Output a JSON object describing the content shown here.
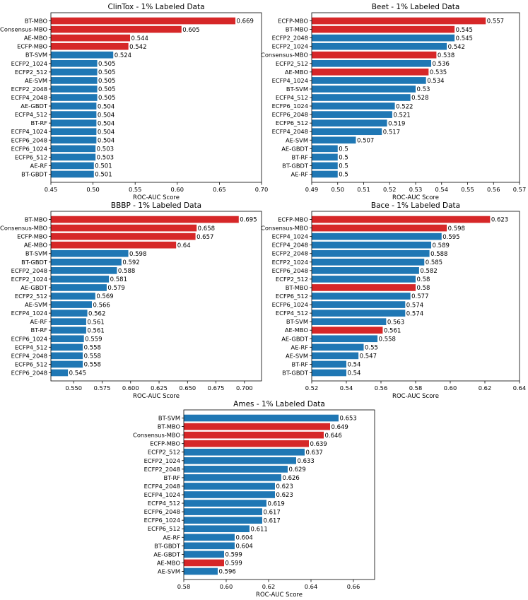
{
  "colors": {
    "highlight": "#d62728",
    "default": "#1f77b4",
    "axis": "#000000"
  },
  "chart_data": [
    {
      "type": "bar",
      "orientation": "horizontal",
      "title": "ClinTox - 1% Labeled Data",
      "xlabel": "ROC-AUC Score",
      "xlim": [
        0.45,
        0.7
      ],
      "xticks": [
        "0.45",
        "0.50",
        "0.55",
        "0.60",
        "0.65",
        "0.70"
      ],
      "categories": [
        "BT-MBO",
        "Consensus-MBO",
        "AE-MBO",
        "ECFP-MBO",
        "BT-SVM",
        "ECFP2_1024",
        "ECFP2_512",
        "AE-SVM",
        "ECFP2_2048",
        "ECFP4_2048",
        "AE-GBDT",
        "ECFP4_512",
        "BT-RF",
        "ECFP4_1024",
        "ECFP6_2048",
        "ECFP6_1024",
        "ECFP6_512",
        "AE-RF",
        "BT-GBDT"
      ],
      "values": [
        0.669,
        0.605,
        0.544,
        0.542,
        0.524,
        0.505,
        0.505,
        0.505,
        0.505,
        0.505,
        0.504,
        0.504,
        0.504,
        0.504,
        0.504,
        0.503,
        0.503,
        0.501,
        0.501
      ],
      "labels": [
        "0.669",
        "0.605",
        "0.544",
        "0.542",
        "0.524",
        "0.505",
        "0.505",
        "0.505",
        "0.505",
        "0.505",
        "0.504",
        "0.504",
        "0.504",
        "0.504",
        "0.504",
        "0.503",
        "0.503",
        "0.501",
        "0.501"
      ],
      "highlight": [
        true,
        true,
        true,
        true,
        false,
        false,
        false,
        false,
        false,
        false,
        false,
        false,
        false,
        false,
        false,
        false,
        false,
        false,
        false
      ]
    },
    {
      "type": "bar",
      "orientation": "horizontal",
      "title": "Beet - 1% Labeled Data",
      "xlabel": "ROC-AUC Score",
      "xlim": [
        0.49,
        0.57
      ],
      "xticks": [
        "0.49",
        "0.50",
        "0.51",
        "0.52",
        "0.53",
        "0.54",
        "0.55",
        "0.56",
        "0.57"
      ],
      "categories": [
        "ECFP-MBO",
        "BT-MBO",
        "ECFP2_2048",
        "ECFP2_1024",
        "Consensus-MBO",
        "ECFP2_512",
        "AE-MBO",
        "ECFP4_1024",
        "BT-SVM",
        "ECFP4_512",
        "ECFP6_1024",
        "ECFP6_2048",
        "ECFP6_512",
        "ECFP4_2048",
        "AE-SVM",
        "AE-GBDT",
        "BT-RF",
        "BT-GBDT",
        "AE-RF"
      ],
      "values": [
        0.557,
        0.545,
        0.545,
        0.542,
        0.538,
        0.536,
        0.535,
        0.534,
        0.53,
        0.528,
        0.522,
        0.521,
        0.519,
        0.517,
        0.507,
        0.5,
        0.5,
        0.5,
        0.5
      ],
      "labels": [
        "0.557",
        "0.545",
        "0.545",
        "0.542",
        "0.538",
        "0.536",
        "0.535",
        "0.534",
        "0.53",
        "0.528",
        "0.522",
        "0.521",
        "0.519",
        "0.517",
        "0.507",
        "0.5",
        "0.5",
        "0.5",
        "0.5"
      ],
      "highlight": [
        true,
        true,
        false,
        false,
        true,
        false,
        true,
        false,
        false,
        false,
        false,
        false,
        false,
        false,
        false,
        false,
        false,
        false,
        false
      ]
    },
    {
      "type": "bar",
      "orientation": "horizontal",
      "title": "BBBP - 1% Labeled Data",
      "xlabel": "ROC-AUC Score",
      "xlim": [
        0.53,
        0.715
      ],
      "xticks": [
        "0.550",
        "0.575",
        "0.600",
        "0.625",
        "0.650",
        "0.675",
        "0.700"
      ],
      "xtick_values": [
        0.55,
        0.575,
        0.6,
        0.625,
        0.65,
        0.675,
        0.7
      ],
      "categories": [
        "BT-MBO",
        "Consensus-MBO",
        "ECFP-MBO",
        "AE-MBO",
        "BT-SVM",
        "BT-GBDT",
        "ECFP2_2048",
        "ECFP2_1024",
        "AE-GBDT",
        "ECFP2_512",
        "AE-SVM",
        "ECFP4_1024",
        "AE-RF",
        "BT-RF",
        "ECFP6_1024",
        "ECFP4_512",
        "ECFP4_2048",
        "ECFP6_512",
        "ECFP6_2048"
      ],
      "values": [
        0.695,
        0.658,
        0.657,
        0.64,
        0.598,
        0.592,
        0.588,
        0.581,
        0.579,
        0.569,
        0.566,
        0.562,
        0.561,
        0.561,
        0.559,
        0.558,
        0.558,
        0.558,
        0.545
      ],
      "labels": [
        "0.695",
        "0.658",
        "0.657",
        "0.64",
        "0.598",
        "0.592",
        "0.588",
        "0.581",
        "0.579",
        "0.569",
        "0.566",
        "0.562",
        "0.561",
        "0.561",
        "0.559",
        "0.558",
        "0.558",
        "0.558",
        "0.545"
      ],
      "highlight": [
        true,
        true,
        true,
        true,
        false,
        false,
        false,
        false,
        false,
        false,
        false,
        false,
        false,
        false,
        false,
        false,
        false,
        false,
        false
      ]
    },
    {
      "type": "bar",
      "orientation": "horizontal",
      "title": "Bace - 1% Labeled Data",
      "xlabel": "ROC-AUC Score",
      "xlim": [
        0.52,
        0.64
      ],
      "xticks": [
        "0.52",
        "0.54",
        "0.56",
        "0.58",
        "0.60",
        "0.62",
        "0.64"
      ],
      "categories": [
        "ECFP-MBO",
        "Consensus-MBO",
        "ECFP4_1024",
        "ECFP4_2048",
        "ECFP2_2048",
        "ECFP2_1024",
        "ECFP6_2048",
        "ECFP2_512",
        "BT-MBO",
        "ECFP6_512",
        "ECFP6_1024",
        "ECFP4_512",
        "BT-SVM",
        "AE-MBO",
        "AE-GBDT",
        "AE-RF",
        "AE-SVM",
        "BT-RF",
        "BT-GBDT"
      ],
      "values": [
        0.623,
        0.598,
        0.595,
        0.589,
        0.588,
        0.585,
        0.582,
        0.58,
        0.58,
        0.577,
        0.574,
        0.574,
        0.563,
        0.561,
        0.558,
        0.55,
        0.547,
        0.54,
        0.54
      ],
      "labels": [
        "0.623",
        "0.598",
        "0.595",
        "0.589",
        "0.588",
        "0.585",
        "0.582",
        "0.58",
        "0.58",
        "0.577",
        "0.574",
        "0.574",
        "0.563",
        "0.561",
        "0.558",
        "0.55",
        "0.547",
        "0.54",
        "0.54"
      ],
      "highlight": [
        true,
        true,
        false,
        false,
        false,
        false,
        false,
        false,
        true,
        false,
        false,
        false,
        false,
        true,
        false,
        false,
        false,
        false,
        false
      ]
    },
    {
      "type": "bar",
      "orientation": "horizontal",
      "title": "Ames - 1% Labeled Data",
      "xlabel": "ROC-AUC Score",
      "xlim": [
        0.58,
        0.67
      ],
      "xticks": [
        "0.58",
        "0.60",
        "0.62",
        "0.64",
        "0.66"
      ],
      "categories": [
        "BT-SVM",
        "BT-MBO",
        "Consensus-MBO",
        "ECFP-MBO",
        "ECFP2_512",
        "ECFP2_1024",
        "ECFP2_2048",
        "BT-RF",
        "ECFP4_2048",
        "ECFP4_1024",
        "ECFP4_512",
        "ECFP6_2048",
        "ECFP6_1024",
        "ECFP6_512",
        "AE-RF",
        "BT-GBDT",
        "AE-GBDT",
        "AE-MBO",
        "AE-SVM"
      ],
      "values": [
        0.653,
        0.649,
        0.646,
        0.639,
        0.637,
        0.633,
        0.629,
        0.626,
        0.623,
        0.623,
        0.619,
        0.617,
        0.617,
        0.611,
        0.604,
        0.604,
        0.599,
        0.599,
        0.596
      ],
      "labels": [
        "0.653",
        "0.649",
        "0.646",
        "0.639",
        "0.637",
        "0.633",
        "0.629",
        "0.626",
        "0.623",
        "0.623",
        "0.619",
        "0.617",
        "0.617",
        "0.611",
        "0.604",
        "0.604",
        "0.599",
        "0.599",
        "0.596"
      ],
      "highlight": [
        false,
        true,
        true,
        true,
        false,
        false,
        false,
        false,
        false,
        false,
        false,
        false,
        false,
        false,
        false,
        false,
        false,
        true,
        false
      ]
    }
  ]
}
